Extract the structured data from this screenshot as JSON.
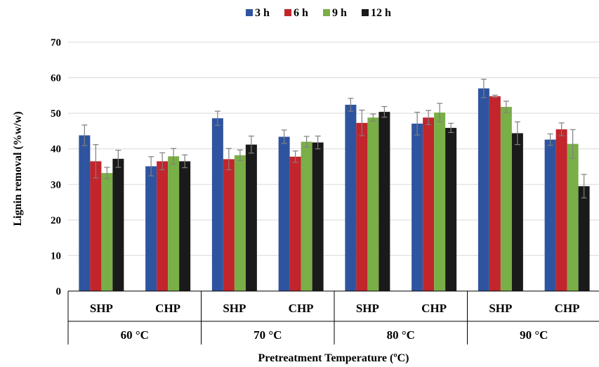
{
  "chart_data": {
    "type": "bar",
    "title": "",
    "xlabel": "Pretreatment Temperature (ºC)",
    "ylabel": "Lignin removal (%w/w)",
    "ylim": [
      0,
      70
    ],
    "yticks": [
      0,
      10,
      20,
      30,
      40,
      50,
      60,
      70
    ],
    "grid": true,
    "legend_position": "top",
    "groups": [
      "60 °C",
      "70 °C",
      "80 °C",
      "90 °C"
    ],
    "subcategories": [
      "SHP",
      "CHP"
    ],
    "categories": [
      "SHP 60 °C",
      "CHP 60 °C",
      "SHP 70 °C",
      "CHP 70 °C",
      "SHP 80 °C",
      "CHP 80 °C",
      "SHP 90 °C",
      "CHP 90 °C"
    ],
    "series": [
      {
        "name": "3 h",
        "color": "#2e54a0",
        "values": [
          43.8,
          35.1,
          48.6,
          43.4,
          52.4,
          47.1,
          57.0,
          42.6
        ],
        "errors": [
          2.9,
          2.7,
          2.0,
          1.9,
          1.8,
          3.2,
          2.6,
          1.6
        ]
      },
      {
        "name": "6 h",
        "color": "#c2252b",
        "values": [
          36.5,
          36.5,
          37.1,
          37.8,
          47.3,
          48.8,
          54.8,
          45.5
        ],
        "errors": [
          4.7,
          2.4,
          3.0,
          1.6,
          3.6,
          2.0,
          0.3,
          1.8
        ]
      },
      {
        "name": "9 h",
        "color": "#7aae47",
        "values": [
          33.2,
          37.9,
          38.2,
          42.0,
          48.8,
          50.2,
          51.8,
          41.4
        ],
        "errors": [
          1.6,
          2.2,
          1.5,
          1.5,
          1.0,
          2.6,
          1.6,
          4.0
        ]
      },
      {
        "name": "12 h",
        "color": "#1a1a1a",
        "values": [
          37.2,
          36.5,
          41.2,
          41.8,
          50.4,
          45.9,
          44.4,
          29.5
        ],
        "errors": [
          2.4,
          1.8,
          2.4,
          1.8,
          1.5,
          1.3,
          3.2,
          3.3
        ]
      }
    ]
  }
}
